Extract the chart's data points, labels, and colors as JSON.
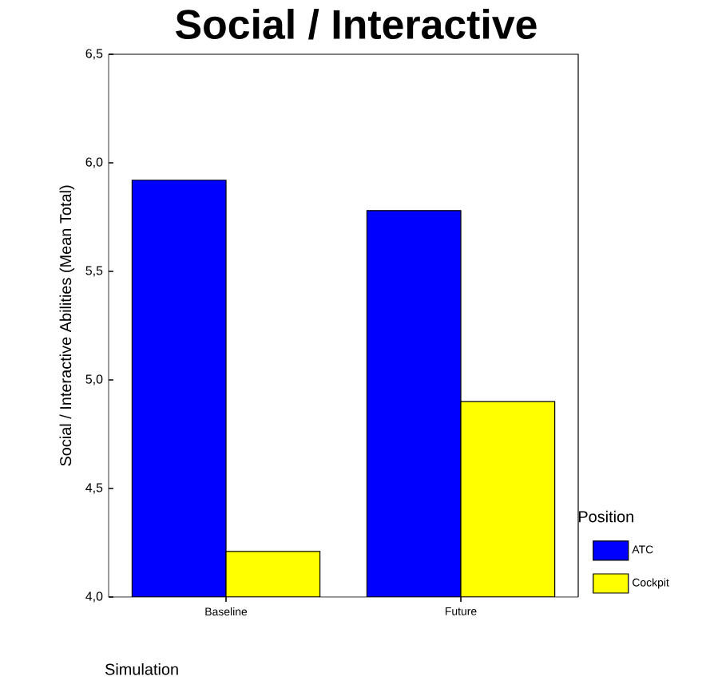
{
  "chart_data": {
    "type": "bar",
    "title": "Social / Interactive",
    "xlabel": "Simulation",
    "ylabel": "Social / Interactive Abilities (Mean Total)",
    "legend_title": "Position",
    "categories": [
      "Baseline",
      "Future"
    ],
    "series": [
      {
        "name": "ATC",
        "color": "#0000ff",
        "values": [
          5.92,
          5.78
        ]
      },
      {
        "name": "Cockpit",
        "color": "#ffff00",
        "values": [
          4.21,
          4.9
        ]
      }
    ],
    "ylim": [
      4.0,
      6.5
    ],
    "yticks": [
      {
        "value": 4.0,
        "label": "4,0"
      },
      {
        "value": 4.5,
        "label": "4,5"
      },
      {
        "value": 5.0,
        "label": "5,0"
      },
      {
        "value": 5.5,
        "label": "5,5"
      },
      {
        "value": 6.0,
        "label": "6,0"
      },
      {
        "value": 6.5,
        "label": "6,5"
      }
    ],
    "legend": "bottom right",
    "grid": false
  }
}
